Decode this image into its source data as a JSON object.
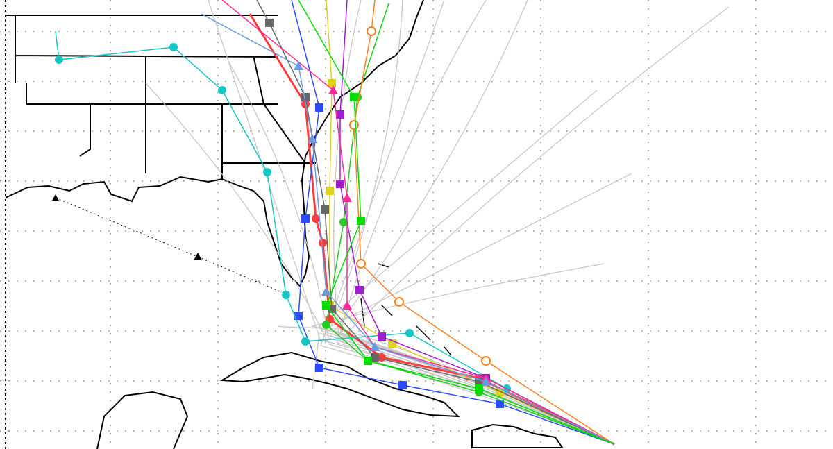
{
  "map": {
    "type": "hurricane-spaghetti-track-map",
    "grid_color": "#b8b89a",
    "land_outline_color": "#000000",
    "ensemble_track_color": "#c8c8c8",
    "forecast_track_line_color": "#000000",
    "tracks": [
      {
        "color": "#ff3b3b",
        "marker": "circle"
      },
      {
        "color": "#2b4cff",
        "marker": "square"
      },
      {
        "color": "#17c4c4",
        "marker": "circle"
      },
      {
        "color": "#22cc22",
        "marker": "circle"
      },
      {
        "color": "#e0d020",
        "marker": "square"
      },
      {
        "color": "#a020d0",
        "marker": "square"
      },
      {
        "color": "#ff8020",
        "marker": "open-circle"
      },
      {
        "color": "#666666",
        "marker": "square"
      },
      {
        "color": "#ff2a9a",
        "marker": "triangle"
      },
      {
        "color": "#6a9ae0",
        "marker": "triangle"
      },
      {
        "color": "#00dd00",
        "marker": "square"
      }
    ]
  }
}
